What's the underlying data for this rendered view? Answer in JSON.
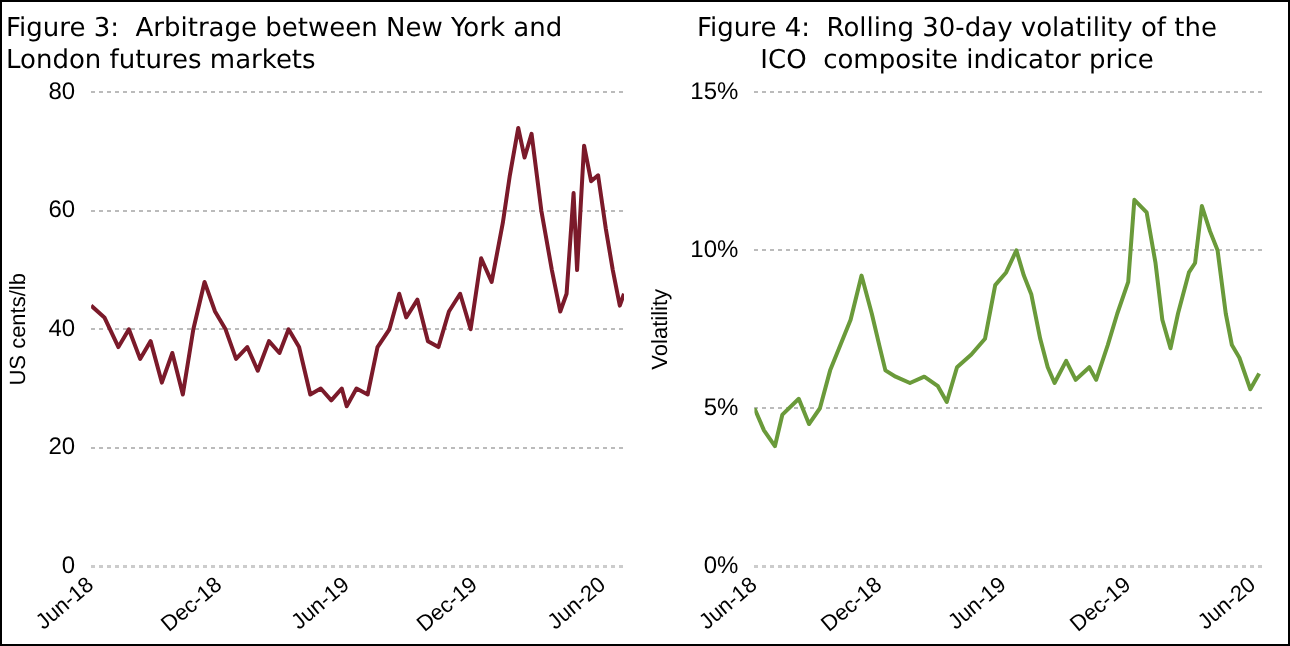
{
  "chart_data": [
    {
      "type": "line",
      "title": "Figure 3:  Arbitrage between New York and\nLondon futures markets",
      "ylabel": "US cents/lb",
      "xlim": [
        "2018-06-01",
        "2020-07-01"
      ],
      "xticks": [
        {
          "value": "2018-06-01",
          "label": "Jun-18"
        },
        {
          "value": "2018-12-01",
          "label": "Dec-18"
        },
        {
          "value": "2019-06-01",
          "label": "Jun-19"
        },
        {
          "value": "2019-12-01",
          "label": "Dec-19"
        },
        {
          "value": "2020-06-01",
          "label": "Jun-20"
        }
      ],
      "ylim": [
        0,
        80
      ],
      "yticks": [
        0,
        20,
        40,
        60,
        80
      ],
      "grid": "y",
      "legend": false,
      "marker": "none",
      "line_style": "solid",
      "series": [
        {
          "color": "#7b1a2a",
          "x": [
            "2018-06-01",
            "2018-06-20",
            "2018-07-10",
            "2018-07-25",
            "2018-08-10",
            "2018-08-25",
            "2018-09-10",
            "2018-09-25",
            "2018-10-10",
            "2018-10-25",
            "2018-11-10",
            "2018-11-25",
            "2018-12-10",
            "2018-12-25",
            "2019-01-10",
            "2019-01-25",
            "2019-02-10",
            "2019-02-25",
            "2019-03-10",
            "2019-03-25",
            "2019-04-10",
            "2019-04-25",
            "2019-05-10",
            "2019-05-25",
            "2019-06-01",
            "2019-06-15",
            "2019-07-01",
            "2019-07-15",
            "2019-08-01",
            "2019-08-15",
            "2019-08-25",
            "2019-09-10",
            "2019-09-25",
            "2019-10-10",
            "2019-10-25",
            "2019-11-10",
            "2019-11-25",
            "2019-12-10",
            "2019-12-25",
            "2020-01-10",
            "2020-01-20",
            "2020-02-01",
            "2020-02-10",
            "2020-02-20",
            "2020-03-05",
            "2020-03-20",
            "2020-04-01",
            "2020-04-10",
            "2020-04-20",
            "2020-04-25",
            "2020-05-05",
            "2020-05-15",
            "2020-05-25",
            "2020-06-05",
            "2020-06-15",
            "2020-06-25",
            "2020-07-01"
          ],
          "values": [
            44,
            42,
            37,
            40,
            35,
            38,
            31,
            36,
            29,
            40,
            48,
            43,
            40,
            35,
            37,
            33,
            38,
            36,
            40,
            37,
            29,
            30,
            28,
            30,
            27,
            30,
            29,
            37,
            40,
            46,
            42,
            45,
            38,
            37,
            43,
            46,
            40,
            52,
            48,
            58,
            66,
            74,
            69,
            73,
            60,
            50,
            43,
            46,
            63,
            50,
            71,
            65,
            66,
            57,
            50,
            44,
            46
          ]
        }
      ]
    },
    {
      "type": "line",
      "title": "Figure 4:  Rolling 30-day volatility of the\nICO  composite indicator price",
      "ylabel": "Volatility",
      "xlim": [
        "2018-06-01",
        "2020-06-20"
      ],
      "xticks": [
        {
          "value": "2018-06-01",
          "label": "Jun-18"
        },
        {
          "value": "2018-12-01",
          "label": "Dec-18"
        },
        {
          "value": "2019-06-01",
          "label": "Jun-19"
        },
        {
          "value": "2019-12-01",
          "label": "Dec-19"
        },
        {
          "value": "2020-06-01",
          "label": "Jun-20"
        }
      ],
      "ylim": [
        0,
        15
      ],
      "yticks": [
        {
          "value": 0,
          "label": "0%"
        },
        {
          "value": 5,
          "label": "5%"
        },
        {
          "value": 10,
          "label": "10%"
        },
        {
          "value": 15,
          "label": "15%"
        }
      ],
      "grid": "y",
      "legend": false,
      "marker": "none",
      "line_style": "solid",
      "series": [
        {
          "color": "#6a9a3a",
          "x": [
            "2018-06-01",
            "2018-06-15",
            "2018-07-01",
            "2018-07-12",
            "2018-08-05",
            "2018-08-20",
            "2018-09-05",
            "2018-09-20",
            "2018-10-05",
            "2018-10-20",
            "2018-11-05",
            "2018-11-20",
            "2018-12-01",
            "2018-12-10",
            "2018-12-25",
            "2019-01-15",
            "2019-02-05",
            "2019-02-25",
            "2019-03-10",
            "2019-03-25",
            "2019-04-15",
            "2019-05-05",
            "2019-05-20",
            "2019-06-05",
            "2019-06-20",
            "2019-07-01",
            "2019-07-12",
            "2019-07-25",
            "2019-08-05",
            "2019-08-15",
            "2019-09-01",
            "2019-09-15",
            "2019-10-05",
            "2019-10-15",
            "2019-11-01",
            "2019-11-15",
            "2019-12-01",
            "2019-12-10",
            "2019-12-28",
            "2020-01-10",
            "2020-01-20",
            "2020-02-01",
            "2020-02-12",
            "2020-02-28",
            "2020-03-08",
            "2020-03-18",
            "2020-03-30",
            "2020-04-10",
            "2020-04-22",
            "2020-05-01",
            "2020-05-12",
            "2020-05-28",
            "2020-06-10"
          ],
          "values": [
            5.0,
            4.3,
            3.8,
            4.8,
            5.3,
            4.5,
            5.0,
            6.2,
            7.0,
            7.8,
            9.2,
            8.0,
            7.0,
            6.2,
            6.0,
            5.8,
            6.0,
            5.7,
            5.2,
            6.3,
            6.7,
            7.2,
            8.9,
            9.3,
            10.0,
            9.2,
            8.6,
            7.2,
            6.3,
            5.8,
            6.5,
            5.9,
            6.3,
            5.9,
            7.0,
            8.0,
            9.0,
            11.6,
            11.2,
            9.6,
            7.8,
            6.9,
            8.0,
            9.3,
            9.6,
            11.4,
            10.6,
            10.0,
            8.0,
            7.0,
            6.6,
            5.6,
            6.1
          ]
        }
      ]
    }
  ]
}
